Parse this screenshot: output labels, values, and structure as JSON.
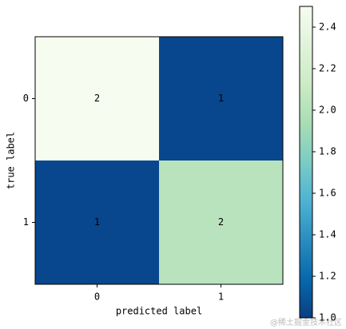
{
  "chart_data": {
    "type": "heatmap",
    "x_label": "predicted label",
    "y_label": "true label",
    "x_categories": [
      "0",
      "1"
    ],
    "y_categories": [
      "0",
      "1"
    ],
    "values": [
      [
        2,
        1
      ],
      [
        1,
        2
      ]
    ],
    "cell_colors": [
      [
        "#f7fcf0",
        "#08478d"
      ],
      [
        "#08478d",
        "#b9e3bd"
      ]
    ],
    "clim": [
      1.0,
      2.5
    ],
    "cticks": [
      {
        "value": 1,
        "label": "1.0"
      },
      1.2,
      1.4,
      1.6,
      1.8,
      {
        "value": 2,
        "label": "2.0"
      },
      2.2,
      2.4
    ],
    "watermark": "@稀土掘金技术社区"
  }
}
